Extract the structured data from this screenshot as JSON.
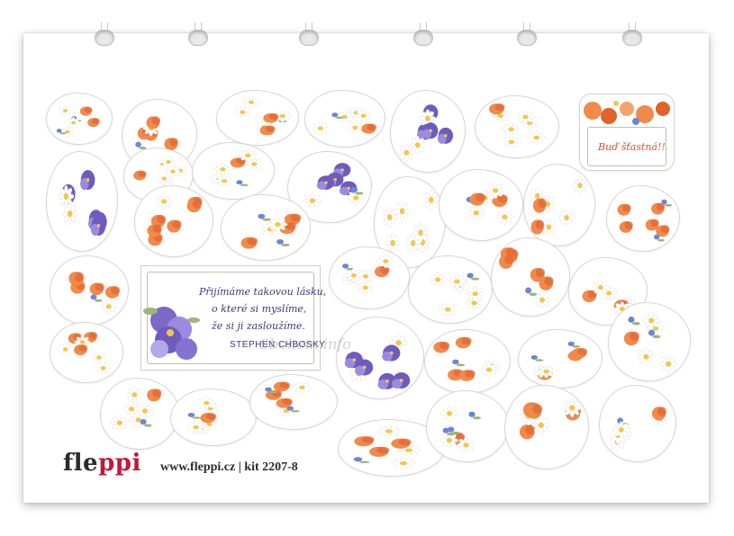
{
  "brand": {
    "logo_prefix": "fle",
    "logo_accent": "ppi",
    "logo_suffix": "",
    "footer": "www.fleppi.cz | kit 2207-8",
    "accent_color": "#c4173a"
  },
  "quote_card": {
    "lines": [
      "Přijímáme takovou lásku,",
      "o které si myslíme,",
      "že si ji zasloužíme."
    ],
    "author": "STEPHEN CHBOSKY"
  },
  "greeting_card": {
    "text": "Buď šťastná!!"
  },
  "watermark": "Sbohem.info",
  "palette": {
    "poppy": "#f08a4b",
    "poppy_dark": "#e2622d",
    "daisy": "#ffffff",
    "daisy_center": "#f2c744",
    "violet": "#6f5bbf",
    "violet_light": "#9a8be0",
    "cornflower": "#6b86d8",
    "leaf": "#9bb57a"
  },
  "sticker_themes": [
    "daisy",
    "poppy",
    "daisy",
    "daisy",
    "pansy",
    "daisy",
    "pansy",
    "daisy",
    "daisy",
    "pansy",
    "daisy",
    "poppy",
    "poppy",
    "poppy",
    "poppy",
    "poppy",
    "poppy",
    "daisy",
    "daisy",
    "poppy",
    "poppy",
    "poppy",
    "daisy",
    "daisy",
    "poppy",
    "pansy",
    "poppy",
    "poppy",
    "daisy",
    "poppy",
    "daisy",
    "poppy",
    "daisy",
    "poppy",
    "pansy"
  ]
}
